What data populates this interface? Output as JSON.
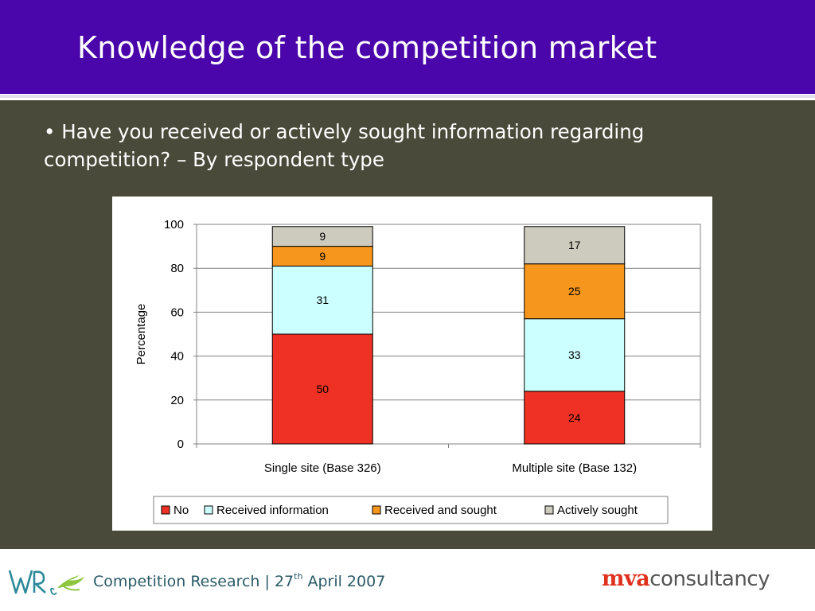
{
  "slide": {
    "title": "Knowledge of the competition market",
    "question": "• Have you received or actively sought information regarding competition? – By respondent type"
  },
  "footer": {
    "text_before": "Competition Research | 27",
    "superscript": "th",
    "text_after": " April 2007",
    "logo_left_text": "WRc",
    "logo_right_red": "mva",
    "logo_right_grey": "consultancy"
  },
  "colors": {
    "header": "#4a06aa",
    "background": "#4a4a3a",
    "no": "#ee3124",
    "received_information": "#ccffff",
    "received_and_sought": "#f7961d",
    "actively_sought": "#cdcabe"
  },
  "chart_data": {
    "type": "bar",
    "stacked": true,
    "categories": [
      "Single site (Base 326)",
      "Multiple site (Base 132)"
    ],
    "series": [
      {
        "name": "No",
        "values": [
          50,
          24
        ],
        "color": "#ee3124"
      },
      {
        "name": "Received information",
        "values": [
          31,
          33
        ],
        "color": "#ccffff"
      },
      {
        "name": "Received and sought",
        "values": [
          9,
          25
        ],
        "color": "#f7961d"
      },
      {
        "name": "Actively sought",
        "values": [
          9,
          17
        ],
        "color": "#cdcabe"
      }
    ],
    "ylabel": "Percentage",
    "xlabel": "",
    "ylim": [
      0,
      100
    ],
    "yticks": [
      0,
      20,
      40,
      60,
      80,
      100
    ],
    "grid": true,
    "legend": "bottom",
    "data_labels": true
  }
}
